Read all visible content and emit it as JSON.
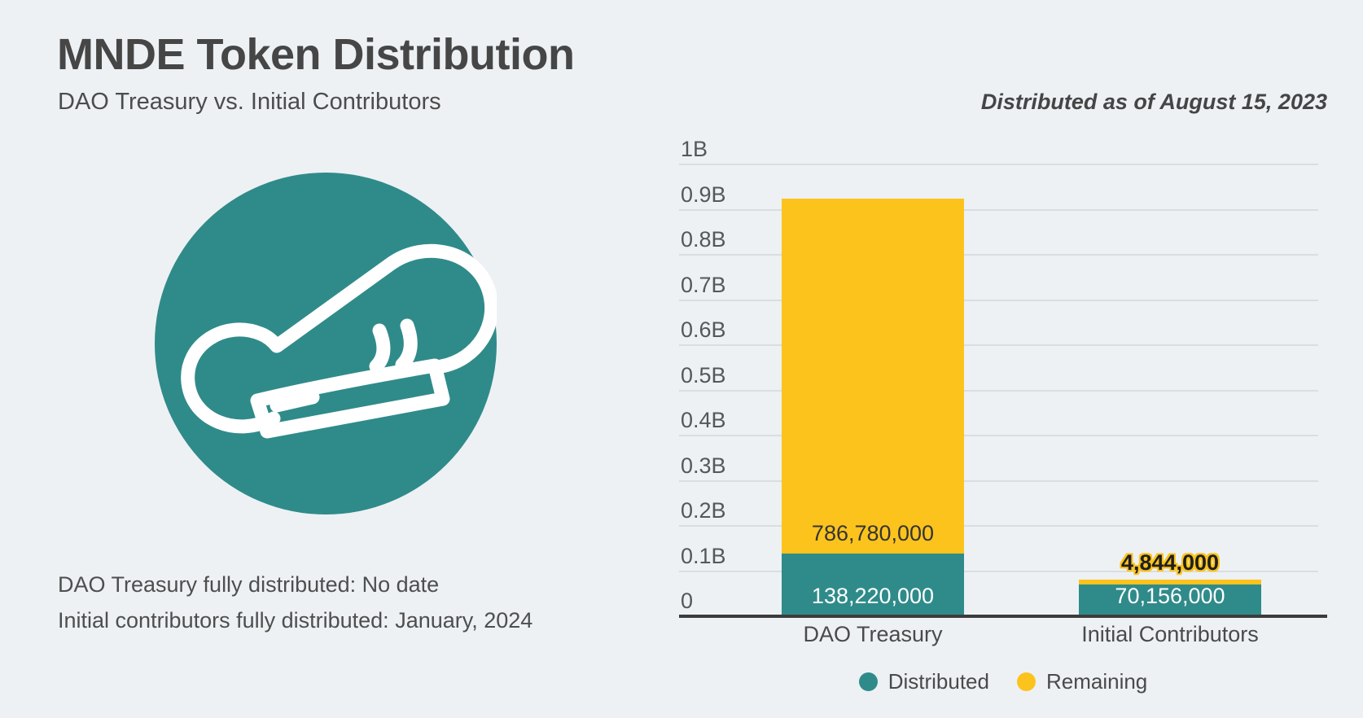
{
  "header": {
    "title": "MNDE Token Distribution",
    "subtitle": "DAO Treasury vs. Initial Contributors",
    "date_note": "Distributed as of August 15, 2023"
  },
  "logo": {
    "icon": "chef-hat-icon",
    "background_color": "#2F8B8A"
  },
  "notes": {
    "line1": "DAO Treasury fully distributed: No date",
    "line2": "Initial contributors fully distributed: January, 2024"
  },
  "colors": {
    "background": "#EDF1F4",
    "teal": "#2F8B8A",
    "yellow": "#FCC31D",
    "text_dark": "#464646",
    "gridline": "#D9DEE3",
    "axis": "#3C3C3C"
  },
  "chart_data": {
    "type": "bar",
    "stacked": true,
    "title": "",
    "xlabel": "",
    "ylabel": "",
    "categories": [
      "DAO Treasury",
      "Initial Contributors"
    ],
    "series": [
      {
        "name": "Distributed",
        "color": "#2F8B8A",
        "values": [
          138220000,
          70156000
        ],
        "labels": [
          "138,220,000",
          "70,156,000"
        ]
      },
      {
        "name": "Remaining",
        "color": "#FCC31D",
        "values": [
          786780000,
          4844000
        ],
        "labels": [
          "786,780,000",
          "4,844,000"
        ]
      }
    ],
    "totals": [
      925000000,
      75000000
    ],
    "ylim": [
      0,
      1000000000
    ],
    "yticks": [
      {
        "label": "1B",
        "value": 1000000000
      },
      {
        "label": "0.9B",
        "value": 900000000
      },
      {
        "label": "0.8B",
        "value": 800000000
      },
      {
        "label": "0.7B",
        "value": 700000000
      },
      {
        "label": "0.6B",
        "value": 600000000
      },
      {
        "label": "0.5B",
        "value": 500000000
      },
      {
        "label": "0.4B",
        "value": 400000000
      },
      {
        "label": "0.3B",
        "value": 300000000
      },
      {
        "label": "0.2B",
        "value": 200000000
      },
      {
        "label": "0.1B",
        "value": 100000000
      },
      {
        "label": "0",
        "value": 0
      }
    ],
    "grid": true,
    "legend_position": "bottom"
  }
}
